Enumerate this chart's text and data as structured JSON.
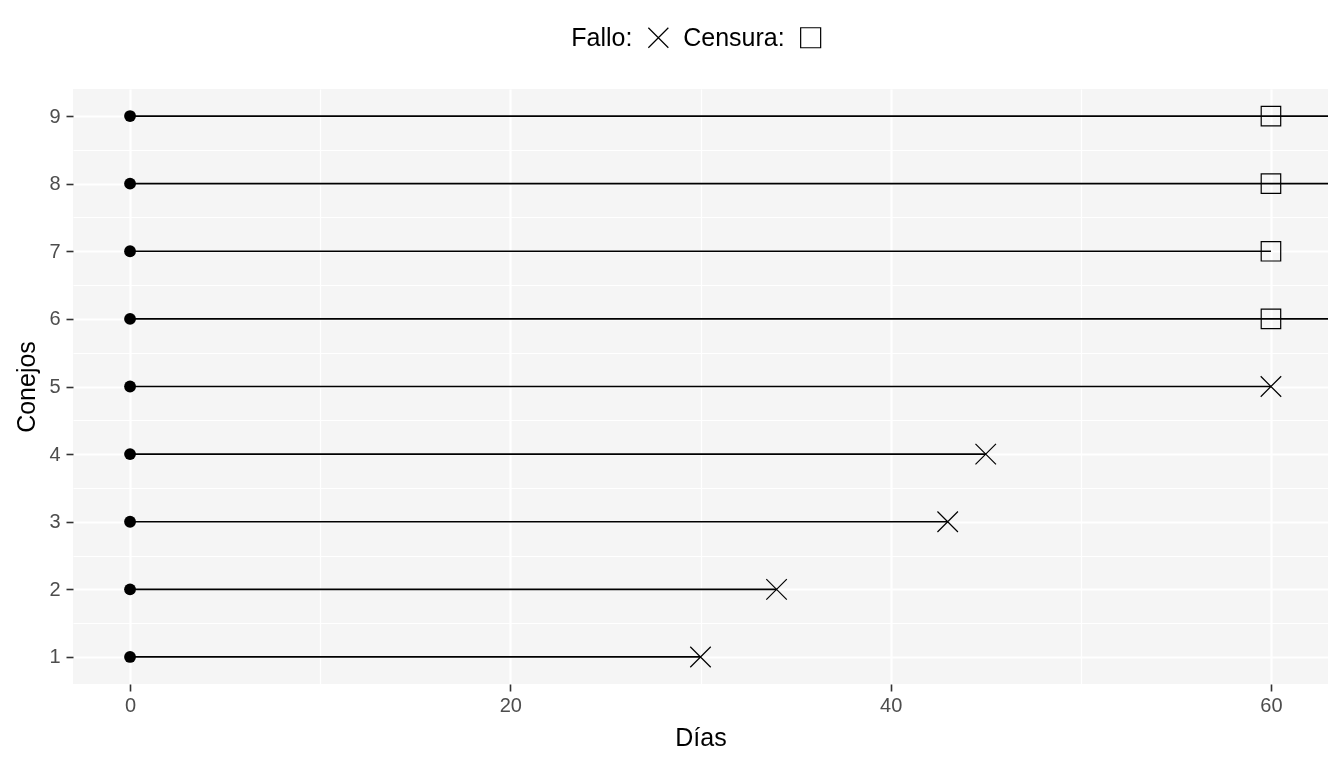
{
  "chart_data": {
    "type": "line",
    "xlabel": "Días",
    "ylabel": "Conejos",
    "xlim": [
      -3,
      63
    ],
    "xticks": [
      0,
      {
        "value": 10,
        "label": null
      },
      20,
      {
        "value": 30,
        "label": null
      },
      40,
      {
        "value": 50,
        "label": null
      },
      60
    ],
    "ylim": [
      0.6,
      9.4
    ],
    "yticks": [
      1,
      {
        "value": 1.5,
        "label": null
      },
      2,
      {
        "value": 2.5,
        "label": null
      },
      3,
      {
        "value": 3.5,
        "label": null
      },
      4,
      {
        "value": 4.5,
        "label": null
      },
      5,
      {
        "value": 5.5,
        "label": null
      },
      6,
      {
        "value": 6.5,
        "label": null
      },
      7,
      {
        "value": 7.5,
        "label": null
      },
      8,
      {
        "value": 8.5,
        "label": null
      },
      9
    ],
    "grid": true,
    "legend": "top",
    "series": [
      {
        "color": "#000000",
        "x": [
          0,
          30
        ],
        "values": [
          1,
          1
        ]
      },
      {
        "color": "#000000",
        "x": [
          0,
          34
        ],
        "values": [
          2,
          2
        ]
      },
      {
        "color": "#000000",
        "x": [
          0,
          43
        ],
        "values": [
          3,
          3
        ]
      },
      {
        "color": "#000000",
        "x": [
          0,
          45
        ],
        "values": [
          4,
          4
        ]
      },
      {
        "color": "#000000",
        "x": [
          0,
          60
        ],
        "values": [
          5,
          5
        ]
      },
      {
        "color": "#000000",
        "x": [
          0,
          63
        ],
        "values": [
          6,
          6
        ]
      },
      {
        "color": "#000000",
        "x": [
          0,
          60
        ],
        "values": [
          7,
          7
        ]
      },
      {
        "color": "#000000",
        "x": [
          0,
          63
        ],
        "values": [
          8,
          8
        ]
      },
      {
        "color": "#000000",
        "x": [
          0,
          63
        ],
        "values": [
          9,
          9
        ]
      },
      {
        "type": "scatter",
        "marker": "circle",
        "color": "#000000",
        "x": [
          0,
          0,
          0,
          0,
          0,
          0,
          0,
          0,
          0
        ],
        "values": [
          1,
          2,
          3,
          4,
          5,
          6,
          7,
          8,
          9
        ]
      },
      {
        "type": "scatter",
        "name": "Fallo:",
        "marker": "cross",
        "color": "#000000",
        "x": [
          30,
          34,
          43,
          45,
          60
        ],
        "values": [
          1,
          2,
          3,
          4,
          5
        ]
      },
      {
        "type": "scatter",
        "name": "Censura:",
        "marker": "square",
        "color": "#000000",
        "x": [
          60,
          60,
          60,
          60
        ],
        "values": [
          6,
          7,
          8,
          9
        ]
      }
    ]
  }
}
